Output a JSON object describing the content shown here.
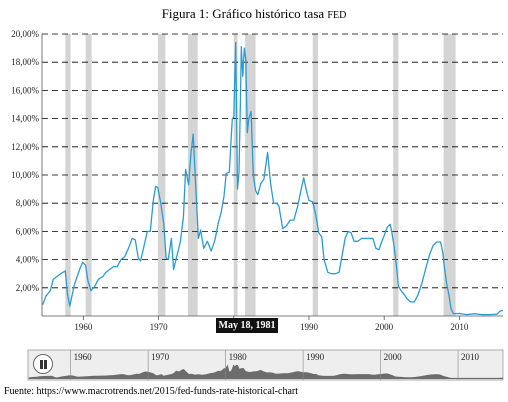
{
  "title_main": "Figura 1: Gráfico histórico tasa ",
  "title_small": "FED",
  "source": "Fuente: https://www.macrotrends.net/2015/fed-funds-rate-historical-chart",
  "tooltip_date": "May 18, 1981",
  "colors": {
    "line": "#2b9bd2",
    "recession": "#d4d4d4",
    "nav_area": "#555555",
    "nav_bg": "#eeeeee"
  },
  "navigator": {
    "year_labels": [
      "1960",
      "1970",
      "1980",
      "1990",
      "2000",
      "2010"
    ],
    "pause_icon": "pause-icon"
  },
  "chart_data": {
    "type": "line",
    "title": "Figura 1: Gráfico histórico tasa FED",
    "xlabel": "",
    "ylabel": "",
    "xlim": [
      1954.5,
      2015.8
    ],
    "ylim": [
      0,
      20
    ],
    "y_ticks": [
      "2,00%",
      "4,00%",
      "6,00%",
      "8,00%",
      "10,00%",
      "12,00%",
      "14,00%",
      "16,00%",
      "18,00%",
      "20,00%"
    ],
    "x_ticks": [
      "1960",
      "1970",
      "1980",
      "1990",
      "2000",
      "2010"
    ],
    "grid": "horizontal dashed",
    "recessions": [
      [
        1957.6,
        1958.3
      ],
      [
        1960.3,
        1961.1
      ],
      [
        1969.9,
        1970.9
      ],
      [
        1973.9,
        1975.2
      ],
      [
        1980.0,
        1980.5
      ],
      [
        1981.5,
        1982.9
      ],
      [
        1990.5,
        1991.2
      ],
      [
        2001.2,
        2001.9
      ],
      [
        2007.9,
        2009.5
      ]
    ],
    "series": [
      {
        "x": [
          1954.6,
          1955.0,
          1955.6,
          1956.0,
          1956.5,
          1957.0,
          1957.6,
          1957.9,
          1958.2,
          1958.4,
          1958.8,
          1959.5,
          1959.9,
          1960.3,
          1960.6,
          1961.0,
          1961.5,
          1962.0,
          1962.6,
          1963.0,
          1963.5,
          1964.0,
          1964.5,
          1965.0,
          1965.5,
          1966.0,
          1966.5,
          1966.9,
          1967.3,
          1967.6,
          1968.0,
          1968.5,
          1968.9,
          1969.3,
          1969.6,
          1969.9,
          1970.3,
          1970.7,
          1971.0,
          1971.3,
          1971.7,
          1972.0,
          1972.5,
          1972.9,
          1973.3,
          1973.6,
          1974.0,
          1974.3,
          1974.6,
          1975.0,
          1975.3,
          1975.6,
          1976.0,
          1976.5,
          1977.0,
          1977.5,
          1977.9,
          1978.3,
          1978.7,
          1979.0,
          1979.4,
          1979.8,
          1980.0,
          1980.25,
          1980.5,
          1980.7,
          1980.9,
          1981.0,
          1981.2,
          1981.4,
          1981.6,
          1981.8,
          1982.0,
          1982.3,
          1982.6,
          1982.9,
          1983.2,
          1983.6,
          1984.0,
          1984.5,
          1984.9,
          1985.3,
          1985.7,
          1986.0,
          1986.5,
          1987.0,
          1987.5,
          1988.0,
          1988.5,
          1989.0,
          1989.3,
          1989.7,
          1990.0,
          1990.5,
          1990.9,
          1991.3,
          1991.7,
          1992.0,
          1992.5,
          1993.0,
          1993.5,
          1994.0,
          1994.4,
          1994.8,
          1995.2,
          1995.6,
          1996.0,
          1996.5,
          1997.0,
          1997.5,
          1998.0,
          1998.5,
          1998.9,
          1999.3,
          1999.7,
          2000.0,
          2000.4,
          2000.8,
          2001.0,
          2001.3,
          2001.6,
          2001.9,
          2002.3,
          2002.7,
          2003.0,
          2003.5,
          2004.0,
          2004.5,
          2005.0,
          2005.5,
          2006.0,
          2006.5,
          2007.0,
          2007.5,
          2007.8,
          2008.0,
          2008.3,
          2008.6,
          2008.9,
          2009.2,
          2010.0,
          2011.0,
          2012.0,
          2013.0,
          2014.0,
          2015.0,
          2015.4,
          2015.8
        ],
        "y": [
          0.8,
          1.4,
          1.8,
          2.6,
          2.8,
          3.0,
          3.2,
          1.5,
          0.7,
          1.2,
          2.2,
          3.3,
          3.8,
          3.6,
          2.5,
          1.8,
          2.1,
          2.6,
          2.8,
          3.1,
          3.3,
          3.5,
          3.5,
          4.0,
          4.2,
          4.8,
          5.5,
          5.4,
          4.1,
          3.9,
          4.8,
          6.0,
          6.0,
          8.2,
          9.2,
          9.1,
          8.0,
          6.5,
          4.1,
          4.0,
          5.5,
          3.3,
          4.4,
          5.3,
          7.0,
          10.4,
          9.3,
          11.5,
          12.9,
          8.5,
          5.5,
          6.1,
          4.8,
          5.3,
          4.6,
          5.4,
          6.5,
          7.3,
          8.5,
          10.1,
          10.2,
          14.0,
          14.1,
          19.4,
          9.0,
          10.2,
          15.5,
          19.1,
          17.0,
          19.0,
          18.2,
          13.0,
          14.0,
          14.5,
          10.0,
          8.9,
          8.6,
          9.4,
          9.7,
          11.6,
          9.4,
          8.0,
          8.0,
          7.8,
          6.2,
          6.4,
          6.8,
          6.8,
          7.8,
          9.1,
          9.8,
          8.8,
          8.2,
          8.1,
          7.2,
          5.9,
          5.6,
          4.0,
          3.1,
          3.0,
          3.0,
          3.1,
          4.3,
          5.5,
          6.0,
          5.9,
          5.3,
          5.3,
          5.5,
          5.5,
          5.5,
          5.5,
          4.8,
          4.7,
          5.3,
          5.7,
          6.3,
          6.5,
          6.0,
          5.0,
          3.7,
          2.1,
          1.75,
          1.5,
          1.25,
          1.0,
          1.0,
          1.5,
          2.3,
          3.3,
          4.3,
          5.0,
          5.25,
          5.25,
          4.5,
          3.5,
          2.3,
          1.5,
          0.5,
          0.16,
          0.18,
          0.1,
          0.16,
          0.1,
          0.1,
          0.13,
          0.35,
          0.4
        ]
      }
    ]
  }
}
